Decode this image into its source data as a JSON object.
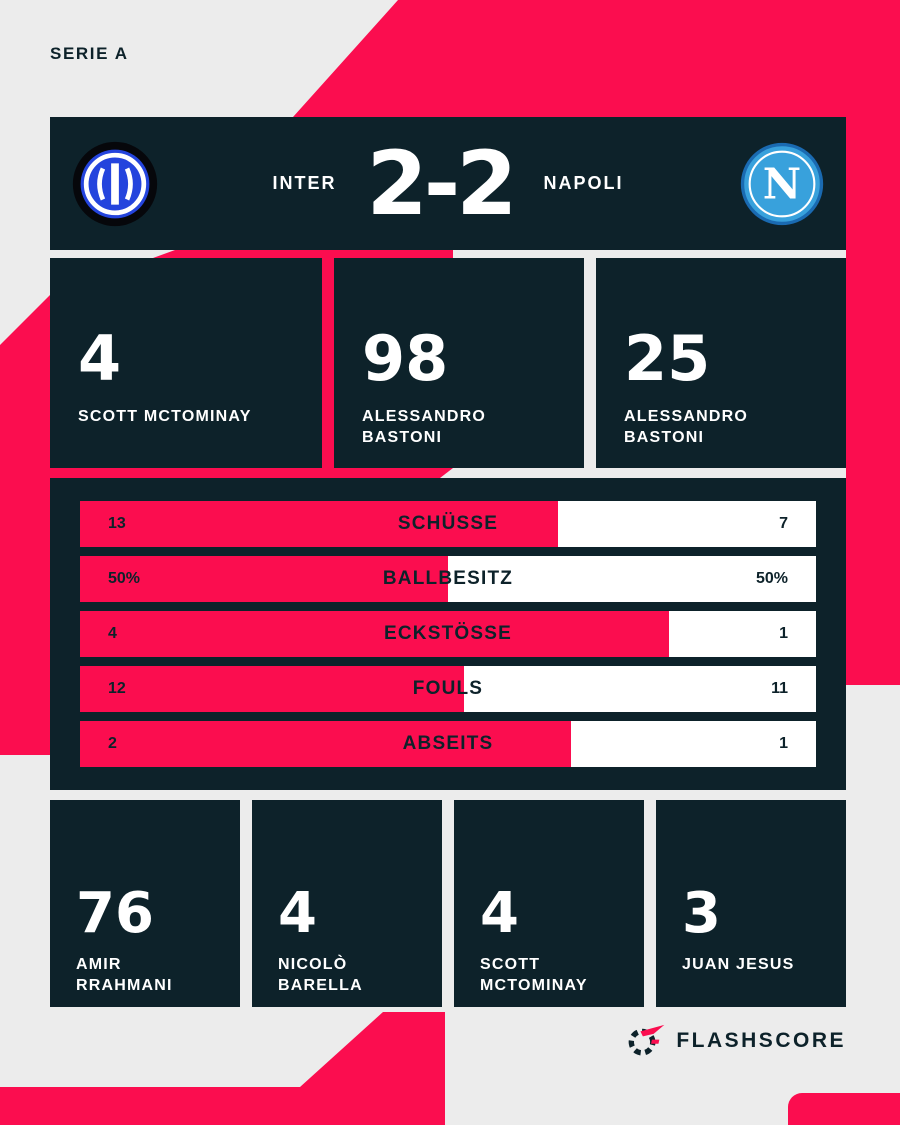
{
  "league": "SERIE A",
  "match": {
    "home_team": "INTER",
    "away_team": "NAPOLI",
    "score": "2-2"
  },
  "top_stats": [
    {
      "value": "4",
      "player": "SCOTT MCTOMINAY"
    },
    {
      "value": "98",
      "player": "ALESSANDRO BASTONI"
    },
    {
      "value": "25",
      "player": "ALESSANDRO BASTONI"
    }
  ],
  "stats_bars": [
    {
      "home": "13",
      "label": "SCHÜSSE",
      "away": "7",
      "fill_pct": 65
    },
    {
      "home": "50%",
      "label": "BALLBESITZ",
      "away": "50%",
      "fill_pct": 50
    },
    {
      "home": "4",
      "label": "ECKSTÖSSE",
      "away": "1",
      "fill_pct": 80
    },
    {
      "home": "12",
      "label": "FOULS",
      "away": "11",
      "fill_pct": 52.2
    },
    {
      "home": "2",
      "label": "ABSEITS",
      "away": "1",
      "fill_pct": 66.7
    }
  ],
  "bottom_stats": [
    {
      "value": "76",
      "player": "AMIR RRAHMANI"
    },
    {
      "value": "4",
      "player": "NICOLÒ BARELLA"
    },
    {
      "value": "4",
      "player": "SCOTT MCTOMINAY"
    },
    {
      "value": "3",
      "player": "JUAN JESUS"
    }
  ],
  "branding": {
    "logo_text": "FLASHSCORE"
  },
  "colors": {
    "accent_red": "#fb0d4f",
    "dark_navy": "#0d222a",
    "background_gray": "#ececec",
    "napoli_blue": "#38a1dc",
    "inter_blue": "#2444dd"
  },
  "chart_data": {
    "type": "bar",
    "title": "INTER 2-2 NAPOLI",
    "categories": [
      "SCHÜSSE",
      "BALLBESITZ",
      "ECKSTÖSSE",
      "FOULS",
      "ABSEITS"
    ],
    "series": [
      {
        "name": "INTER",
        "values": [
          13,
          50,
          4,
          12,
          2
        ]
      },
      {
        "name": "NAPOLI",
        "values": [
          7,
          50,
          1,
          11,
          1
        ]
      }
    ],
    "value_units": [
      "count",
      "percent",
      "count",
      "count",
      "count"
    ],
    "layout": "horizontal opposed bars, home share filled red from left, away share white"
  }
}
